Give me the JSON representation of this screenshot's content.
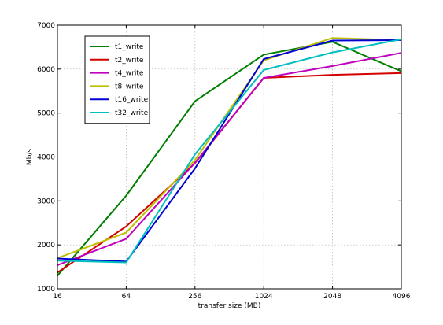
{
  "chart_data": {
    "type": "line",
    "xlabel": "transfer size (MB)",
    "ylabel": "Mb/s",
    "categories": [
      "16",
      "64",
      "256",
      "1024",
      "2048",
      "4096"
    ],
    "ylim": [
      1000,
      7000
    ],
    "yticks": [
      1000,
      2000,
      3000,
      4000,
      5000,
      6000,
      7000
    ],
    "grid": true,
    "legend_position": "top-left",
    "series": [
      {
        "name": "t1_write",
        "color": "#007f00",
        "values": [
          1300,
          3120,
          5270,
          6330,
          6620,
          5950
        ]
      },
      {
        "name": "t2_write",
        "color": "#d40000",
        "values": [
          1370,
          2420,
          3860,
          5800,
          5870,
          5910
        ]
      },
      {
        "name": "t4_write",
        "color": "#bf00bf",
        "values": [
          1540,
          2140,
          3870,
          5800,
          6070,
          6370
        ]
      },
      {
        "name": "t8_write",
        "color": "#bfbf00",
        "values": [
          1700,
          2280,
          3930,
          6200,
          6710,
          6660
        ]
      },
      {
        "name": "t16_write",
        "color": "#0000d4",
        "values": [
          1690,
          1620,
          3740,
          6230,
          6650,
          6660
        ]
      },
      {
        "name": "t32_write",
        "color": "#00bfbf",
        "values": [
          1640,
          1600,
          4060,
          5980,
          6380,
          6680
        ]
      }
    ]
  }
}
